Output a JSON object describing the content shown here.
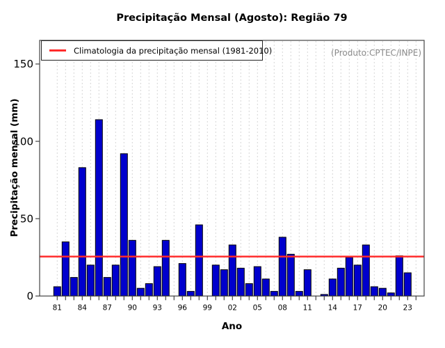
{
  "title": "Precipitação Mensal (Agosto): Região 79",
  "legend": {
    "label": "Climatologia da precipitação mensal (1981-2010)"
  },
  "annotations": {
    "produto": "(Produto:CPTEC/INPE)"
  },
  "axes": {
    "x_label": "Ano",
    "y_label": "Precipitação mensal (mm)",
    "y_ticks": [
      0,
      50,
      100,
      150
    ],
    "x_tick_label_every": 3
  },
  "colors": {
    "bar_fill": "#0000cd",
    "bar_border": "#000000",
    "climatology_line": "#ff2b2b",
    "gridline": "#d6d6d6",
    "frame": "#444444",
    "produto_text": "#8a8a8a"
  },
  "chart_data": {
    "type": "bar",
    "title": "Precipitação Mensal (Agosto): Região 79",
    "xlabel": "Ano",
    "ylabel": "Precipitação mensal (mm)",
    "categories": [
      "81",
      "82",
      "83",
      "84",
      "85",
      "86",
      "87",
      "88",
      "89",
      "90",
      "91",
      "92",
      "93",
      "94",
      "95",
      "96",
      "97",
      "98",
      "99",
      "00",
      "01",
      "02",
      "03",
      "04",
      "05",
      "06",
      "07",
      "08",
      "09",
      "10",
      "11",
      "12",
      "13",
      "14",
      "15",
      "16",
      "17",
      "18",
      "19",
      "20",
      "21",
      "22",
      "23",
      "24"
    ],
    "values": [
      6,
      35,
      12,
      83,
      20,
      114,
      12,
      20,
      92,
      36,
      5,
      8,
      19,
      36,
      0,
      21,
      3,
      46,
      0,
      20,
      17,
      33,
      18,
      8,
      19,
      11,
      3,
      38,
      27,
      3,
      17,
      0,
      1,
      11,
      18,
      25,
      20,
      33,
      6,
      5,
      2,
      26,
      15,
      0
    ],
    "climatology_value": 25.5,
    "ylim": [
      0,
      165
    ],
    "grid": "vertical-dashed",
    "legend_position": "top-left"
  }
}
